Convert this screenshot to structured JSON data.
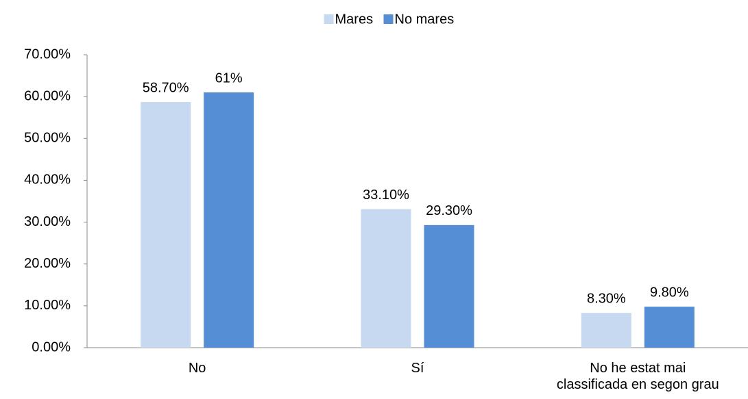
{
  "chart_data": {
    "type": "bar",
    "categories": [
      "No",
      "Sí",
      "No he estat mai\nclassificada en segon grau"
    ],
    "series": [
      {
        "name": "Mares",
        "color": "#c6d9f1",
        "values": [
          58.7,
          33.1,
          8.3
        ],
        "value_labels": [
          "58.70%",
          "33.10%",
          "8.30%"
        ]
      },
      {
        "name": "No mares",
        "color": "#558ed5",
        "values": [
          61,
          29.3,
          9.8
        ],
        "value_labels": [
          "61%",
          "29.30%",
          "9.80%"
        ]
      }
    ],
    "ylim": [
      0,
      70
    ],
    "yticks": [
      {
        "value": 0,
        "label": "0.00%"
      },
      {
        "value": 10,
        "label": "10.00%"
      },
      {
        "value": 20,
        "label": "20.00%"
      },
      {
        "value": 30,
        "label": "30.00%"
      },
      {
        "value": 40,
        "label": "40.00%"
      },
      {
        "value": 50,
        "label": "50.00%"
      },
      {
        "value": 60,
        "label": "60.00%"
      },
      {
        "value": 70,
        "label": "70.00%"
      }
    ],
    "grid": false,
    "legend": "top"
  }
}
